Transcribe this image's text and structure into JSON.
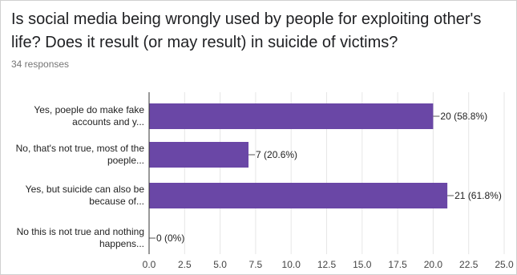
{
  "header": {
    "title": "Is social media being wrongly used by people for exploiting other's life? Does it result (or may result) in suicide of victims?",
    "responses": "34 responses"
  },
  "colors": {
    "bar": "#6a47a6",
    "axis": "#333333",
    "grid": "#e6e6e6"
  },
  "chart_data": {
    "type": "bar",
    "orientation": "horizontal",
    "categories": [
      [
        "Yes, poeple do make fake",
        "accounts and y..."
      ],
      [
        "No, that's not true, most of the",
        "poeple..."
      ],
      [
        "Yes, but suicide can also be",
        "because of..."
      ],
      [
        "No this is not true and nothing",
        "happens..."
      ]
    ],
    "values": [
      20,
      7,
      21,
      0
    ],
    "value_labels": [
      "20 (58.8%)",
      "7 (20.6%)",
      "21 (61.8%)",
      "0 (0%)"
    ],
    "xlim": [
      0,
      25
    ],
    "xticks": [
      "0.0",
      "2.5",
      "5.0",
      "7.5",
      "10.0",
      "12.5",
      "15.0",
      "17.5",
      "20.0",
      "22.5",
      "25.0"
    ],
    "xtick_values": [
      0,
      2.5,
      5,
      7.5,
      10,
      12.5,
      15,
      17.5,
      20,
      22.5,
      25
    ],
    "grid": true,
    "legend": "none"
  }
}
